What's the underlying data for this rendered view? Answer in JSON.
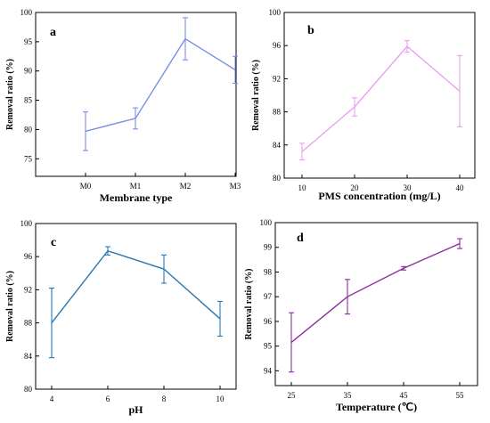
{
  "chart_data": [
    {
      "panel": "a",
      "type": "line",
      "color": "#7b8ee8",
      "categories": [
        "M0",
        "M1",
        "M2",
        "M3"
      ],
      "values": [
        79.7,
        81.9,
        95.5,
        90.2
      ],
      "errors": [
        3.3,
        1.8,
        3.6,
        2.3
      ],
      "xlabel": "Membrane type",
      "ylabel": "Removal ratio (%)",
      "ylim": [
        72,
        100
      ],
      "yticks": [
        75,
        80,
        85,
        90,
        95,
        100
      ],
      "x_ticks_labels": [
        "M0",
        "M1",
        "M2",
        "M3"
      ]
    },
    {
      "panel": "b",
      "type": "line",
      "color": "#e8a0f0",
      "categories": [
        "10",
        "20",
        "30",
        "40"
      ],
      "values": [
        83.2,
        88.6,
        95.9,
        90.5
      ],
      "errors": [
        1.0,
        1.1,
        0.7,
        4.3
      ],
      "xlabel": "PMS concentration (mg/L)",
      "ylabel": "Removal ratio (%)",
      "ylim": [
        80,
        100
      ],
      "yticks": [
        80,
        84,
        88,
        92,
        96,
        100
      ],
      "x_ticks_labels": [
        "10",
        "20",
        "30",
        "40"
      ]
    },
    {
      "panel": "c",
      "type": "line",
      "color": "#2a78b0",
      "categories": [
        "4",
        "6",
        "8",
        "10"
      ],
      "values": [
        88.0,
        96.7,
        94.5,
        88.5
      ],
      "errors": [
        4.2,
        0.5,
        1.7,
        2.1
      ],
      "xlabel": "pH",
      "ylabel": "Removal ratio (%)",
      "ylim": [
        80,
        100
      ],
      "yticks": [
        80,
        84,
        88,
        92,
        96,
        100
      ],
      "x_ticks_labels": [
        "4",
        "6",
        "8",
        "10"
      ]
    },
    {
      "panel": "d",
      "type": "line",
      "color": "#8b2f9e",
      "categories": [
        "25",
        "35",
        "45",
        "55"
      ],
      "values": [
        95.15,
        97.0,
        98.15,
        99.15
      ],
      "errors": [
        1.2,
        0.7,
        0.07,
        0.2
      ],
      "xlabel": "Temperature (℃)",
      "ylabel": "Removal ratio (%)",
      "ylim": [
        93.4,
        100
      ],
      "yticks": [
        94,
        95,
        96,
        97,
        98,
        99,
        100
      ],
      "x_ticks_labels": [
        "25",
        "35",
        "45",
        "55"
      ]
    }
  ]
}
